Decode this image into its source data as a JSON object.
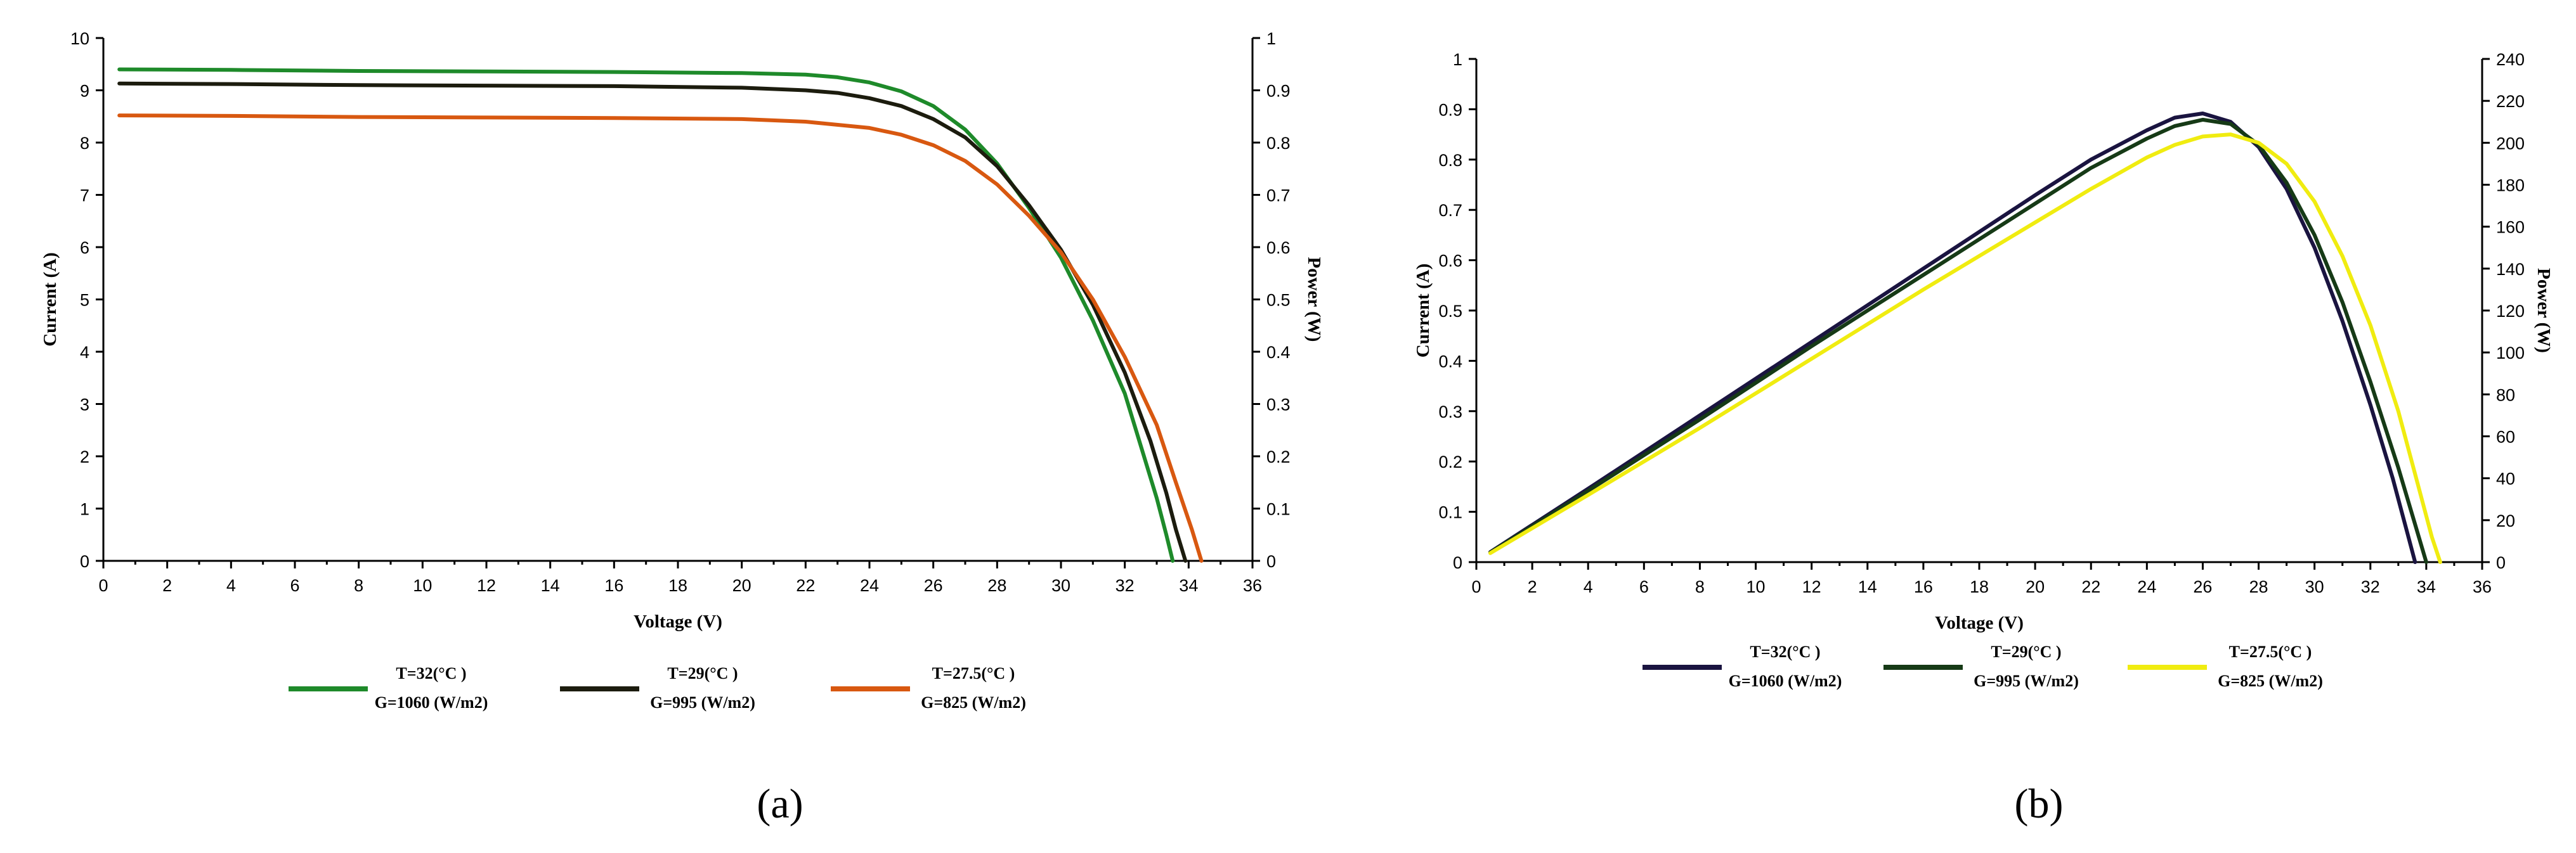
{
  "chart_data": [
    {
      "type": "line",
      "panel_label": "(a)",
      "xlabel": "Voltage (V)",
      "ylabel": "Current (A)",
      "y2label": "Power (W)",
      "xlim": [
        0,
        36
      ],
      "ylim": [
        0,
        10
      ],
      "y2lim": [
        0,
        1
      ],
      "x_ticks": [
        "0",
        "2",
        "4",
        "6",
        "8",
        "10",
        "12",
        "14",
        "16",
        "18",
        "20",
        "22",
        "24",
        "26",
        "28",
        "30",
        "32",
        "34",
        "36"
      ],
      "y_ticks": [
        "0",
        "1",
        "2",
        "3",
        "4",
        "5",
        "6",
        "7",
        "8",
        "9",
        "10"
      ],
      "y2_ticks": [
        "0",
        "0.1",
        "0.2",
        "0.3",
        "0.4",
        "0.5",
        "0.6",
        "0.7",
        "0.8",
        "0.9",
        "1"
      ],
      "series": [
        {
          "name": "T=32(°C) G=1060 (W/m2)",
          "line1": "T=32(°C )",
          "line2": "G=1060 (W/m2)",
          "color": "#1e8a2a",
          "points": [
            [
              0.5,
              9.4
            ],
            [
              4,
              9.39
            ],
            [
              8,
              9.37
            ],
            [
              12,
              9.36
            ],
            [
              16,
              9.35
            ],
            [
              20,
              9.33
            ],
            [
              22,
              9.3
            ],
            [
              23,
              9.25
            ],
            [
              24,
              9.15
            ],
            [
              25,
              8.98
            ],
            [
              26,
              8.7
            ],
            [
              27,
              8.25
            ],
            [
              28,
              7.6
            ],
            [
              29,
              6.75
            ],
            [
              30,
              5.8
            ],
            [
              31,
              4.6
            ],
            [
              32,
              3.2
            ],
            [
              32.6,
              2.0
            ],
            [
              33,
              1.2
            ],
            [
              33.3,
              0.5
            ],
            [
              33.5,
              0
            ]
          ]
        },
        {
          "name": "T=29(°C) G=995 (W/m2)",
          "line1": "T=29(°C )",
          "line2": "G=995 (W/m2)",
          "color": "#1c1c0e",
          "points": [
            [
              0.5,
              9.13
            ],
            [
              4,
              9.12
            ],
            [
              8,
              9.1
            ],
            [
              12,
              9.09
            ],
            [
              16,
              9.08
            ],
            [
              20,
              9.05
            ],
            [
              22,
              9.0
            ],
            [
              23,
              8.95
            ],
            [
              24,
              8.85
            ],
            [
              25,
              8.7
            ],
            [
              26,
              8.45
            ],
            [
              27,
              8.1
            ],
            [
              28,
              7.55
            ],
            [
              29,
              6.8
            ],
            [
              30,
              5.95
            ],
            [
              31,
              4.9
            ],
            [
              32,
              3.6
            ],
            [
              32.8,
              2.3
            ],
            [
              33.3,
              1.3
            ],
            [
              33.6,
              0.6
            ],
            [
              33.9,
              0
            ]
          ]
        },
        {
          "name": "T=27.5(°C) G=825 (W/m2)",
          "line1": "T=27.5(°C )",
          "line2": "G=825 (W/m2)",
          "color": "#d85810",
          "points": [
            [
              0.5,
              8.52
            ],
            [
              4,
              8.51
            ],
            [
              8,
              8.49
            ],
            [
              12,
              8.48
            ],
            [
              16,
              8.47
            ],
            [
              20,
              8.45
            ],
            [
              22,
              8.4
            ],
            [
              24,
              8.28
            ],
            [
              25,
              8.15
            ],
            [
              26,
              7.95
            ],
            [
              27,
              7.65
            ],
            [
              28,
              7.2
            ],
            [
              29,
              6.6
            ],
            [
              30,
              5.9
            ],
            [
              31,
              5.0
            ],
            [
              32,
              3.9
            ],
            [
              33,
              2.6
            ],
            [
              33.6,
              1.5
            ],
            [
              34.1,
              0.6
            ],
            [
              34.4,
              0
            ]
          ]
        }
      ]
    },
    {
      "type": "line",
      "panel_label": "(b)",
      "xlabel": "Voltage (V)",
      "ylabel": "Current (A)",
      "y2label": "Power (W)",
      "xlim": [
        0,
        36
      ],
      "ylim": [
        0,
        1
      ],
      "y2lim": [
        0,
        240
      ],
      "x_ticks": [
        "0",
        "2",
        "4",
        "6",
        "8",
        "10",
        "12",
        "14",
        "16",
        "18",
        "20",
        "22",
        "24",
        "26",
        "28",
        "30",
        "32",
        "34",
        "36"
      ],
      "y_ticks": [
        "0",
        "0.1",
        "0.2",
        "0.3",
        "0.4",
        "0.5",
        "0.6",
        "0.7",
        "0.8",
        "0.9",
        "1"
      ],
      "y2_ticks": [
        "0",
        "20",
        "40",
        "60",
        "80",
        "100",
        "120",
        "140",
        "160",
        "180",
        "200",
        "220",
        "240"
      ],
      "series": [
        {
          "name": "T=32(°C) G=1060 (W/m2)",
          "line1": "T=32(°C )",
          "line2": "G=1060 (W/m2)",
          "color": "#1a1440",
          "points": [
            [
              0.5,
              4.8
            ],
            [
              4,
              35
            ],
            [
              8,
              70
            ],
            [
              12,
              105
            ],
            [
              16,
              140
            ],
            [
              20,
              175
            ],
            [
              22,
              192
            ],
            [
              24,
              206
            ],
            [
              25,
              212
            ],
            [
              26,
              214
            ],
            [
              27,
              210
            ],
            [
              28,
              198
            ],
            [
              29,
              178
            ],
            [
              30,
              150
            ],
            [
              31,
              115
            ],
            [
              32,
              75
            ],
            [
              32.8,
              40
            ],
            [
              33.3,
              15
            ],
            [
              33.6,
              0
            ]
          ]
        },
        {
          "name": "T=29(°C) G=995 (W/m2)",
          "line1": "T=29(°C )",
          "line2": "G=995 (W/m2)",
          "color": "#163a16",
          "points": [
            [
              0.5,
              4.6
            ],
            [
              4,
              34
            ],
            [
              8,
              68
            ],
            [
              12,
              103
            ],
            [
              16,
              137
            ],
            [
              20,
              171
            ],
            [
              22,
              188
            ],
            [
              24,
              202
            ],
            [
              25,
              208
            ],
            [
              26,
              211
            ],
            [
              27,
              209
            ],
            [
              28,
              199
            ],
            [
              29,
              181
            ],
            [
              30,
              156
            ],
            [
              31,
              124
            ],
            [
              32,
              86
            ],
            [
              33,
              45
            ],
            [
              33.6,
              18
            ],
            [
              34.0,
              0
            ]
          ]
        },
        {
          "name": "T=27.5(°C) G=825 (W/m2)",
          "line1": "T=27.5(°C )",
          "line2": "G=825 (W/m2)",
          "color": "#f0ec10",
          "points": [
            [
              0.5,
              4.3
            ],
            [
              4,
              32
            ],
            [
              8,
              64
            ],
            [
              12,
              97
            ],
            [
              16,
              130
            ],
            [
              20,
              162
            ],
            [
              22,
              178
            ],
            [
              24,
              193
            ],
            [
              25,
              199
            ],
            [
              26,
              203
            ],
            [
              27,
              204
            ],
            [
              28,
              200
            ],
            [
              29,
              190
            ],
            [
              30,
              172
            ],
            [
              31,
              146
            ],
            [
              32,
              113
            ],
            [
              33,
              72
            ],
            [
              33.8,
              32
            ],
            [
              34.2,
              12
            ],
            [
              34.5,
              0
            ]
          ]
        }
      ]
    }
  ]
}
